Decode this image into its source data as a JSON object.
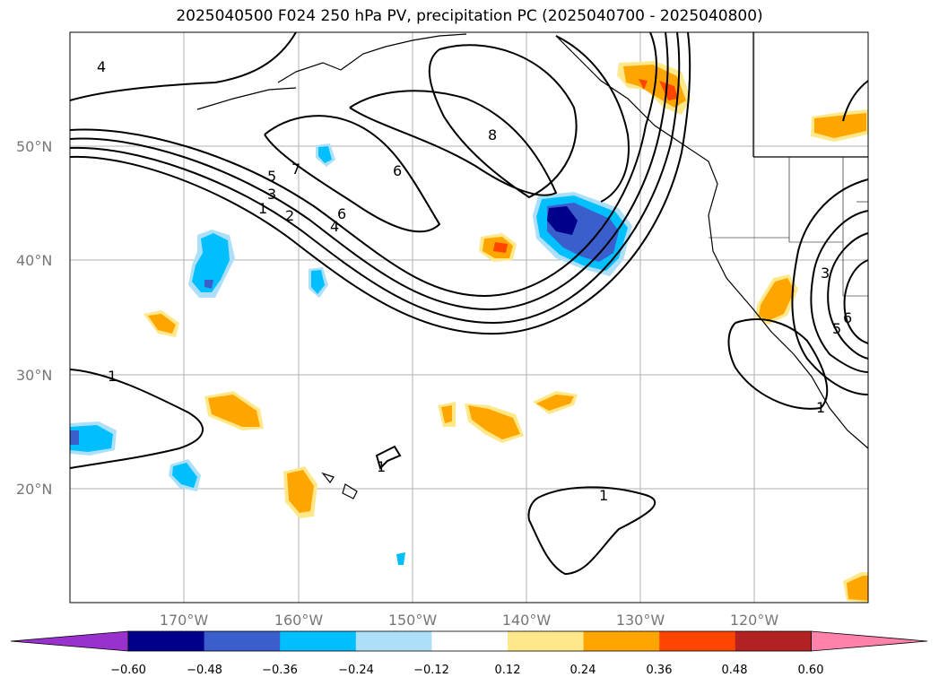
{
  "title": "2025040500 F024 250 hPa PV, precipitation PC (2025040700 - 2025040800)",
  "map": {
    "extent": {
      "lon_min": -180,
      "lon_max": -110,
      "lat_min": 10,
      "lat_max": 60
    },
    "lat_ticks": [
      {
        "value": 50,
        "label": "50°N"
      },
      {
        "value": 40,
        "label": "40°N"
      },
      {
        "value": 30,
        "label": "30°N"
      },
      {
        "value": 20,
        "label": "20°N"
      }
    ],
    "lon_ticks": [
      {
        "value": -170,
        "label": "170°W"
      },
      {
        "value": -160,
        "label": "160°W"
      },
      {
        "value": -150,
        "label": "150°W"
      },
      {
        "value": -140,
        "label": "140°W"
      },
      {
        "value": -130,
        "label": "130°W"
      },
      {
        "value": -120,
        "label": "120°W"
      }
    ],
    "contour_labels": [
      "1",
      "2",
      "3",
      "4",
      "5",
      "6",
      "7",
      "8",
      "6",
      "4",
      "1",
      "1",
      "1",
      "1",
      "3",
      "5",
      "6"
    ]
  },
  "colorbar": {
    "labels": [
      "−0.60",
      "−0.48",
      "−0.36",
      "−0.24",
      "−0.12",
      "0.12",
      "0.24",
      "0.36",
      "0.48",
      "0.60"
    ],
    "colors": [
      "#9932CC",
      "#00008B",
      "#3A5FCD",
      "#00BFFF",
      "#ADE0F8",
      "#FFFFFF",
      "#FFE88A",
      "#FFA500",
      "#FF4500",
      "#B22222",
      "#FF82AB"
    ]
  }
}
